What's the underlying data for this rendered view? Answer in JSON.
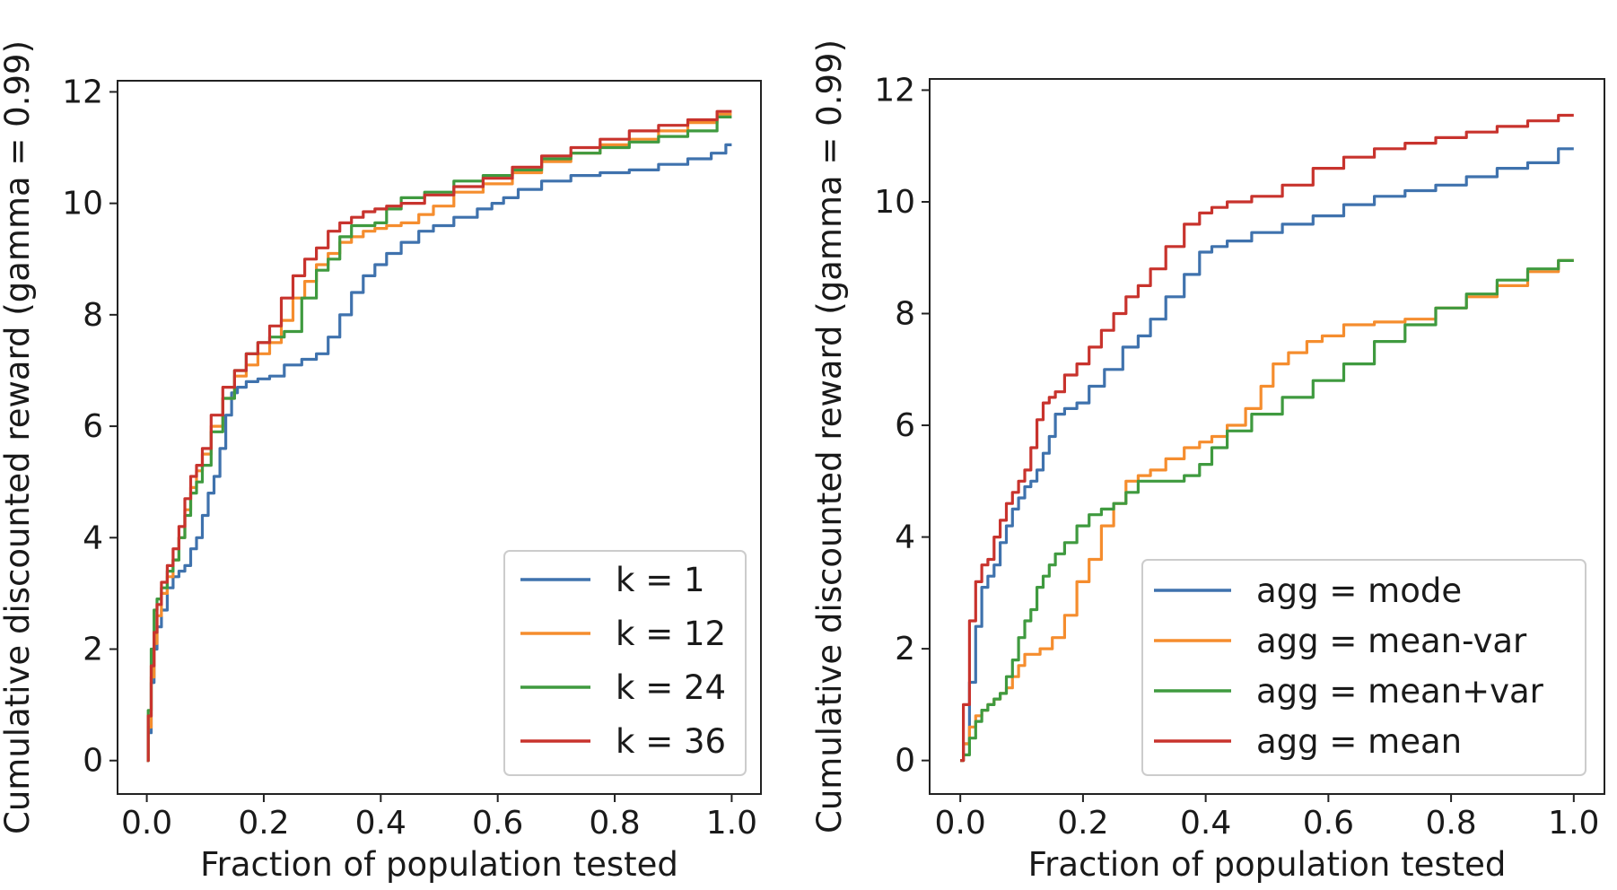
{
  "chart_data": [
    {
      "type": "line",
      "xlabel": "Fraction of population tested",
      "ylabel": "Cumulative discounted reward (gamma = 0.99)",
      "xlim": [
        -0.05,
        1.05
      ],
      "ylim": [
        -0.6,
        12.2
      ],
      "xticks": [
        "0.0",
        "0.2",
        "0.4",
        "0.6",
        "0.8",
        "1.0"
      ],
      "yticks": [
        "0",
        "2",
        "4",
        "6",
        "8",
        "10",
        "12"
      ],
      "legend_position": "lower-right",
      "series": [
        {
          "name": "k = 1",
          "color": "#3f72ad",
          "x": [
            0,
            0.005,
            0.01,
            0.015,
            0.02,
            0.03,
            0.04,
            0.05,
            0.06,
            0.07,
            0.08,
            0.09,
            0.1,
            0.11,
            0.12,
            0.13,
            0.14,
            0.15,
            0.16,
            0.18,
            0.2,
            0.22,
            0.25,
            0.28,
            0.3,
            0.32,
            0.34,
            0.36,
            0.38,
            0.4,
            0.42,
            0.45,
            0.48,
            0.5,
            0.55,
            0.58,
            0.6,
            0.62,
            0.65,
            0.7,
            0.75,
            0.8,
            0.85,
            0.9,
            0.95,
            0.98,
            1.0
          ],
          "values": [
            0,
            0.5,
            1.4,
            2.0,
            2.4,
            2.7,
            3.1,
            3.3,
            3.4,
            3.5,
            3.8,
            4.0,
            4.4,
            4.8,
            5.1,
            5.6,
            6.2,
            6.6,
            6.7,
            6.8,
            6.85,
            6.9,
            7.1,
            7.2,
            7.3,
            7.6,
            8.0,
            8.4,
            8.7,
            8.9,
            9.1,
            9.3,
            9.5,
            9.6,
            9.75,
            9.9,
            10.0,
            10.1,
            10.25,
            10.4,
            10.5,
            10.55,
            10.6,
            10.7,
            10.8,
            10.9,
            11.05
          ]
        },
        {
          "name": "k = 12",
          "color": "#f58d2e",
          "x": [
            0,
            0.005,
            0.01,
            0.015,
            0.02,
            0.03,
            0.04,
            0.05,
            0.06,
            0.07,
            0.08,
            0.09,
            0.1,
            0.12,
            0.14,
            0.16,
            0.18,
            0.2,
            0.22,
            0.24,
            0.26,
            0.28,
            0.3,
            0.32,
            0.34,
            0.36,
            0.38,
            0.4,
            0.42,
            0.45,
            0.48,
            0.5,
            0.55,
            0.6,
            0.65,
            0.7,
            0.75,
            0.8,
            0.85,
            0.9,
            0.95,
            1.0
          ],
          "values": [
            0,
            0.6,
            1.5,
            2.1,
            2.6,
            3.0,
            3.3,
            3.6,
            4.0,
            4.5,
            4.9,
            5.2,
            5.5,
            6.0,
            6.5,
            6.9,
            7.1,
            7.3,
            7.5,
            7.9,
            8.3,
            8.6,
            8.9,
            9.1,
            9.3,
            9.4,
            9.5,
            9.55,
            9.6,
            9.65,
            9.8,
            9.95,
            10.2,
            10.35,
            10.55,
            10.75,
            10.9,
            11.05,
            11.15,
            11.3,
            11.45,
            11.6
          ]
        },
        {
          "name": "k = 24",
          "color": "#3f9a3f",
          "x": [
            0,
            0.005,
            0.01,
            0.015,
            0.02,
            0.03,
            0.04,
            0.05,
            0.06,
            0.07,
            0.08,
            0.09,
            0.1,
            0.12,
            0.14,
            0.16,
            0.18,
            0.2,
            0.22,
            0.25,
            0.28,
            0.3,
            0.32,
            0.34,
            0.36,
            0.38,
            0.4,
            0.42,
            0.45,
            0.5,
            0.55,
            0.6,
            0.65,
            0.7,
            0.75,
            0.8,
            0.85,
            0.9,
            0.95,
            1.0
          ],
          "values": [
            0,
            0.9,
            2.0,
            2.7,
            2.9,
            3.1,
            3.4,
            3.6,
            4.0,
            4.4,
            4.8,
            5.0,
            5.3,
            5.9,
            6.5,
            7.0,
            7.3,
            7.5,
            7.6,
            7.7,
            8.3,
            8.8,
            9.0,
            9.4,
            9.6,
            9.6,
            9.65,
            9.9,
            10.1,
            10.2,
            10.4,
            10.5,
            10.6,
            10.8,
            10.9,
            11.0,
            11.1,
            11.2,
            11.3,
            11.55
          ]
        },
        {
          "name": "k = 36",
          "color": "#c8332d",
          "x": [
            0,
            0.005,
            0.01,
            0.015,
            0.02,
            0.03,
            0.04,
            0.05,
            0.06,
            0.07,
            0.08,
            0.09,
            0.1,
            0.12,
            0.14,
            0.16,
            0.18,
            0.2,
            0.22,
            0.24,
            0.26,
            0.28,
            0.3,
            0.32,
            0.34,
            0.36,
            0.38,
            0.4,
            0.42,
            0.45,
            0.5,
            0.55,
            0.6,
            0.65,
            0.7,
            0.75,
            0.8,
            0.85,
            0.9,
            0.95,
            1.0
          ],
          "values": [
            0,
            0.8,
            1.7,
            2.3,
            2.8,
            3.2,
            3.5,
            3.8,
            4.2,
            4.7,
            5.1,
            5.3,
            5.6,
            6.2,
            6.7,
            7.0,
            7.3,
            7.5,
            7.8,
            8.3,
            8.7,
            9.0,
            9.2,
            9.5,
            9.65,
            9.75,
            9.85,
            9.9,
            9.95,
            10.0,
            10.15,
            10.3,
            10.45,
            10.65,
            10.85,
            11.0,
            11.15,
            11.3,
            11.4,
            11.5,
            11.65
          ]
        }
      ]
    },
    {
      "type": "line",
      "xlabel": "Fraction of population tested",
      "ylabel": "Cumulative discounted reward (gamma = 0.99)",
      "xlim": [
        -0.05,
        1.05
      ],
      "ylim": [
        -0.6,
        12.2
      ],
      "xticks": [
        "0.0",
        "0.2",
        "0.4",
        "0.6",
        "0.8",
        "1.0"
      ],
      "yticks": [
        "0",
        "2",
        "4",
        "6",
        "8",
        "10",
        "12"
      ],
      "legend_position": "lower-right",
      "series": [
        {
          "name": "agg = mode",
          "color": "#3f72ad",
          "x": [
            0,
            0.01,
            0.02,
            0.03,
            0.04,
            0.05,
            0.06,
            0.07,
            0.08,
            0.09,
            0.1,
            0.11,
            0.12,
            0.13,
            0.14,
            0.15,
            0.16,
            0.18,
            0.2,
            0.22,
            0.25,
            0.28,
            0.3,
            0.32,
            0.35,
            0.38,
            0.4,
            0.42,
            0.45,
            0.5,
            0.55,
            0.6,
            0.65,
            0.7,
            0.75,
            0.8,
            0.85,
            0.9,
            0.95,
            1.0
          ],
          "values": [
            0,
            0.3,
            1.4,
            2.4,
            3.1,
            3.3,
            3.5,
            3.9,
            4.2,
            4.5,
            4.7,
            4.9,
            5.0,
            5.2,
            5.5,
            5.8,
            6.2,
            6.3,
            6.4,
            6.7,
            7.0,
            7.4,
            7.6,
            7.9,
            8.3,
            8.7,
            9.1,
            9.2,
            9.3,
            9.45,
            9.6,
            9.75,
            9.95,
            10.1,
            10.2,
            10.3,
            10.45,
            10.6,
            10.7,
            10.95
          ]
        },
        {
          "name": "agg = mean-var",
          "color": "#f58d2e",
          "x": [
            0,
            0.01,
            0.02,
            0.03,
            0.04,
            0.05,
            0.06,
            0.07,
            0.08,
            0.09,
            0.1,
            0.11,
            0.12,
            0.14,
            0.16,
            0.18,
            0.2,
            0.22,
            0.24,
            0.26,
            0.28,
            0.3,
            0.32,
            0.35,
            0.38,
            0.4,
            0.42,
            0.45,
            0.48,
            0.5,
            0.52,
            0.55,
            0.58,
            0.6,
            0.65,
            0.7,
            0.75,
            0.8,
            0.85,
            0.9,
            0.95,
            1.0
          ],
          "values": [
            0,
            0.3,
            0.6,
            0.8,
            0.9,
            1.0,
            1.1,
            1.2,
            1.3,
            1.5,
            1.7,
            1.9,
            1.9,
            2.0,
            2.2,
            2.6,
            3.2,
            3.6,
            4.2,
            4.6,
            5.0,
            5.1,
            5.2,
            5.4,
            5.6,
            5.7,
            5.8,
            6.0,
            6.3,
            6.7,
            7.1,
            7.3,
            7.5,
            7.6,
            7.8,
            7.85,
            7.9,
            8.1,
            8.3,
            8.5,
            8.75,
            8.95
          ]
        },
        {
          "name": "agg = mean+var",
          "color": "#3f9a3f",
          "x": [
            0,
            0.01,
            0.02,
            0.03,
            0.04,
            0.05,
            0.06,
            0.07,
            0.08,
            0.09,
            0.1,
            0.11,
            0.12,
            0.13,
            0.14,
            0.15,
            0.16,
            0.18,
            0.2,
            0.22,
            0.24,
            0.26,
            0.28,
            0.3,
            0.32,
            0.35,
            0.38,
            0.4,
            0.42,
            0.45,
            0.5,
            0.55,
            0.6,
            0.65,
            0.7,
            0.75,
            0.8,
            0.85,
            0.9,
            0.95,
            1.0
          ],
          "values": [
            0,
            0.1,
            0.4,
            0.7,
            0.9,
            1.0,
            1.1,
            1.2,
            1.5,
            1.8,
            2.2,
            2.5,
            2.7,
            3.1,
            3.3,
            3.5,
            3.7,
            3.9,
            4.2,
            4.4,
            4.5,
            4.6,
            4.8,
            5.0,
            5.0,
            5.0,
            5.1,
            5.3,
            5.6,
            5.9,
            6.2,
            6.5,
            6.8,
            7.1,
            7.5,
            7.8,
            8.1,
            8.35,
            8.6,
            8.8,
            8.95
          ]
        },
        {
          "name": "agg = mean",
          "color": "#c8332d",
          "x": [
            0,
            0.01,
            0.02,
            0.03,
            0.04,
            0.05,
            0.06,
            0.07,
            0.08,
            0.09,
            0.1,
            0.11,
            0.12,
            0.13,
            0.14,
            0.15,
            0.16,
            0.18,
            0.2,
            0.22,
            0.24,
            0.26,
            0.28,
            0.3,
            0.32,
            0.35,
            0.38,
            0.4,
            0.42,
            0.45,
            0.5,
            0.55,
            0.6,
            0.65,
            0.7,
            0.75,
            0.8,
            0.85,
            0.9,
            0.95,
            1.0
          ],
          "values": [
            0,
            1.0,
            2.5,
            3.2,
            3.5,
            3.6,
            4.0,
            4.3,
            4.6,
            4.8,
            5.0,
            5.2,
            5.6,
            6.1,
            6.4,
            6.5,
            6.6,
            6.9,
            7.1,
            7.4,
            7.7,
            8.0,
            8.3,
            8.5,
            8.8,
            9.2,
            9.6,
            9.8,
            9.9,
            10.0,
            10.1,
            10.3,
            10.6,
            10.8,
            10.95,
            11.05,
            11.15,
            11.25,
            11.35,
            11.45,
            11.55
          ]
        }
      ]
    }
  ]
}
